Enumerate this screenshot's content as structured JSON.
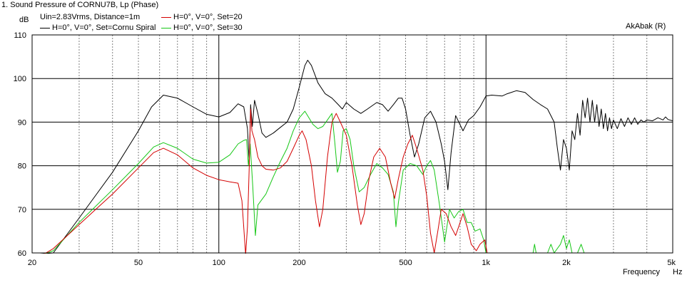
{
  "header": {
    "title": "1. Sound Pressure of CORNU7B, Lp (Phase)",
    "conditions": "Uin=2.83Vrms, Distance=1m",
    "brand": "AkAbak (R)"
  },
  "colors": {
    "black": "#000000",
    "red": "#d40000",
    "green": "#16c716",
    "grid": "#808080"
  },
  "chart_data": {
    "type": "line",
    "title": "1. Sound Pressure of CORNU7B, Lp (Phase)",
    "subtitle": "Uin=2.83Vrms, Distance=1m",
    "xlabel": "Frequency",
    "x_unit": "Hz",
    "ylabel": "dB",
    "x_scale": "log",
    "xlim": [
      20,
      5000
    ],
    "ylim": [
      60,
      110
    ],
    "x_ticks": [
      {
        "value": 20,
        "label": "20"
      },
      {
        "value": 50,
        "label": "50"
      },
      {
        "value": 100,
        "label": "100"
      },
      {
        "value": 200,
        "label": "200"
      },
      {
        "value": 500,
        "label": "500"
      },
      {
        "value": 1000,
        "label": "1k"
      },
      {
        "value": 2000,
        "label": "2k"
      },
      {
        "value": 5000,
        "label": "5k"
      }
    ],
    "y_ticks": [
      {
        "value": 60,
        "label": "60"
      },
      {
        "value": 70,
        "label": "70"
      },
      {
        "value": 80,
        "label": "80"
      },
      {
        "value": 90,
        "label": "90"
      },
      {
        "value": 100,
        "label": "100"
      },
      {
        "value": 110,
        "label": "110"
      }
    ],
    "grid": true,
    "legend_position": "top-left",
    "series": [
      {
        "name": "H=0°, V=0°, Set=Cornu Spiral",
        "color": "#000000",
        "points": [
          [
            20,
            55
          ],
          [
            24,
            60
          ],
          [
            30,
            68
          ],
          [
            40,
            78.5
          ],
          [
            50,
            88
          ],
          [
            56,
            93.5
          ],
          [
            62,
            96.2
          ],
          [
            70,
            95.5
          ],
          [
            80,
            93.5
          ],
          [
            90,
            91.8
          ],
          [
            100,
            91.2
          ],
          [
            110,
            92.2
          ],
          [
            118,
            94.2
          ],
          [
            124,
            93.5
          ],
          [
            128,
            88.5
          ],
          [
            130,
            80.5
          ],
          [
            131.5,
            94
          ],
          [
            133.5,
            89
          ],
          [
            136,
            95
          ],
          [
            140,
            92
          ],
          [
            145,
            87.5
          ],
          [
            150,
            86.5
          ],
          [
            160,
            87.5
          ],
          [
            170,
            88.8
          ],
          [
            180,
            90
          ],
          [
            190,
            93
          ],
          [
            200,
            98
          ],
          [
            210,
            103
          ],
          [
            215,
            104.2
          ],
          [
            222,
            103
          ],
          [
            235,
            99
          ],
          [
            250,
            96.5
          ],
          [
            265,
            95.5
          ],
          [
            280,
            94
          ],
          [
            290,
            93
          ],
          [
            300,
            94.5
          ],
          [
            320,
            93
          ],
          [
            340,
            92
          ],
          [
            360,
            93
          ],
          [
            390,
            94.5
          ],
          [
            410,
            94
          ],
          [
            430,
            92.5
          ],
          [
            450,
            94
          ],
          [
            470,
            95.5
          ],
          [
            485,
            95.5
          ],
          [
            500,
            93
          ],
          [
            520,
            87
          ],
          [
            540,
            82
          ],
          [
            560,
            85
          ],
          [
            590,
            91
          ],
          [
            620,
            92.5
          ],
          [
            650,
            90
          ],
          [
            680,
            85
          ],
          [
            700,
            81
          ],
          [
            720,
            74.5
          ],
          [
            740,
            83
          ],
          [
            770,
            91.5
          ],
          [
            820,
            88
          ],
          [
            860,
            90.5
          ],
          [
            900,
            91.5
          ],
          [
            950,
            93.5
          ],
          [
            1000,
            96
          ],
          [
            1050,
            96.2
          ],
          [
            1150,
            96
          ],
          [
            1200,
            96.5
          ],
          [
            1300,
            97.2
          ],
          [
            1400,
            96.8
          ],
          [
            1500,
            95.2
          ],
          [
            1600,
            94
          ],
          [
            1700,
            93
          ],
          [
            1800,
            90
          ],
          [
            1850,
            84
          ],
          [
            1900,
            79
          ],
          [
            1950,
            86
          ],
          [
            2000,
            84
          ],
          [
            2050,
            79
          ],
          [
            2100,
            88
          ],
          [
            2150,
            86
          ],
          [
            2200,
            92
          ],
          [
            2250,
            87
          ],
          [
            2300,
            95
          ],
          [
            2350,
            91
          ],
          [
            2400,
            95.5
          ],
          [
            2450,
            90
          ],
          [
            2500,
            95
          ],
          [
            2550,
            90
          ],
          [
            2600,
            94
          ],
          [
            2650,
            89
          ],
          [
            2700,
            93
          ],
          [
            2750,
            88.5
          ],
          [
            2800,
            92
          ],
          [
            2850,
            88
          ],
          [
            2900,
            91
          ],
          [
            2950,
            88.5
          ],
          [
            3000,
            90.5
          ],
          [
            3100,
            88.5
          ],
          [
            3200,
            90.8
          ],
          [
            3300,
            89
          ],
          [
            3400,
            91
          ],
          [
            3500,
            89.5
          ],
          [
            3600,
            91
          ],
          [
            3700,
            89.5
          ],
          [
            3800,
            90.5
          ],
          [
            3900,
            90
          ],
          [
            4000,
            90.5
          ],
          [
            4200,
            90.3
          ],
          [
            4400,
            91
          ],
          [
            4600,
            90.5
          ],
          [
            4700,
            91.2
          ],
          [
            4800,
            90.6
          ],
          [
            5000,
            90.3
          ]
        ]
      },
      {
        "name": "H=0°, V=0°, Set=20",
        "color": "#d40000",
        "points": [
          [
            20,
            56
          ],
          [
            22,
            59
          ],
          [
            24,
            61
          ],
          [
            30,
            66.5
          ],
          [
            40,
            73.5
          ],
          [
            50,
            79.5
          ],
          [
            57,
            83
          ],
          [
            62,
            84
          ],
          [
            70,
            82.5
          ],
          [
            80,
            79.5
          ],
          [
            90,
            77.8
          ],
          [
            100,
            76.8
          ],
          [
            110,
            76.3
          ],
          [
            118,
            76
          ],
          [
            122,
            72
          ],
          [
            126,
            59
          ],
          [
            128,
            66
          ],
          [
            130,
            80
          ],
          [
            131.5,
            93
          ],
          [
            133,
            88
          ],
          [
            136,
            86
          ],
          [
            140,
            82
          ],
          [
            145,
            80
          ],
          [
            150,
            79.2
          ],
          [
            160,
            79
          ],
          [
            170,
            79.5
          ],
          [
            180,
            81
          ],
          [
            190,
            84
          ],
          [
            200,
            87
          ],
          [
            205,
            88
          ],
          [
            212,
            86
          ],
          [
            222,
            80
          ],
          [
            230,
            72
          ],
          [
            238,
            66
          ],
          [
            245,
            70
          ],
          [
            255,
            82
          ],
          [
            265,
            90
          ],
          [
            275,
            92
          ],
          [
            285,
            90
          ],
          [
            300,
            87
          ],
          [
            315,
            80
          ],
          [
            330,
            71
          ],
          [
            340,
            66.5
          ],
          [
            350,
            69
          ],
          [
            365,
            77
          ],
          [
            380,
            82
          ],
          [
            400,
            84
          ],
          [
            420,
            82
          ],
          [
            440,
            76
          ],
          [
            455,
            72.5
          ],
          [
            470,
            77
          ],
          [
            490,
            82
          ],
          [
            510,
            85
          ],
          [
            530,
            87
          ],
          [
            550,
            84
          ],
          [
            580,
            79
          ],
          [
            600,
            73
          ],
          [
            620,
            64.5
          ],
          [
            640,
            60
          ],
          [
            660,
            65
          ],
          [
            680,
            70
          ],
          [
            710,
            69
          ],
          [
            740,
            66
          ],
          [
            770,
            64
          ],
          [
            800,
            67
          ],
          [
            820,
            69
          ],
          [
            850,
            66
          ],
          [
            880,
            62
          ],
          [
            920,
            60.5
          ],
          [
            950,
            62
          ],
          [
            990,
            63
          ],
          [
            1010,
            60
          ],
          [
            1200,
            60
          ],
          [
            5000,
            60
          ]
        ]
      },
      {
        "name": "H=0°, V=0°, Set=30",
        "color": "#16c716",
        "points": [
          [
            20,
            56.5
          ],
          [
            22,
            58.8
          ],
          [
            24,
            60.5
          ],
          [
            30,
            67
          ],
          [
            40,
            74.5
          ],
          [
            50,
            80.5
          ],
          [
            57,
            84.3
          ],
          [
            62,
            85.3
          ],
          [
            70,
            84
          ],
          [
            80,
            81.5
          ],
          [
            90,
            80.6
          ],
          [
            100,
            80.8
          ],
          [
            110,
            82.5
          ],
          [
            118,
            85
          ],
          [
            124,
            85.8
          ],
          [
            127,
            86
          ],
          [
            129,
            80
          ],
          [
            131,
            85
          ],
          [
            134,
            75
          ],
          [
            137,
            64
          ],
          [
            140,
            71
          ],
          [
            150,
            73.5
          ],
          [
            160,
            77.5
          ],
          [
            170,
            81
          ],
          [
            180,
            84
          ],
          [
            190,
            88
          ],
          [
            200,
            91
          ],
          [
            210,
            92.5
          ],
          [
            225,
            89.5
          ],
          [
            235,
            88.5
          ],
          [
            245,
            89
          ],
          [
            255,
            90.5
          ],
          [
            265,
            92
          ],
          [
            272,
            85
          ],
          [
            278,
            78.5
          ],
          [
            285,
            81
          ],
          [
            292,
            88
          ],
          [
            300,
            88.5
          ],
          [
            310,
            86
          ],
          [
            320,
            80
          ],
          [
            335,
            74
          ],
          [
            350,
            75
          ],
          [
            370,
            78
          ],
          [
            390,
            80.5
          ],
          [
            410,
            79.5
          ],
          [
            430,
            78
          ],
          [
            450,
            74
          ],
          [
            460,
            66
          ],
          [
            470,
            71.5
          ],
          [
            490,
            79
          ],
          [
            520,
            80.5
          ],
          [
            550,
            80
          ],
          [
            580,
            78
          ],
          [
            600,
            80
          ],
          [
            620,
            81.2
          ],
          [
            640,
            79
          ],
          [
            670,
            71
          ],
          [
            700,
            62.5
          ],
          [
            730,
            70
          ],
          [
            760,
            68
          ],
          [
            790,
            69.5
          ],
          [
            820,
            70
          ],
          [
            850,
            67
          ],
          [
            880,
            67
          ],
          [
            910,
            65
          ],
          [
            950,
            65.5
          ],
          [
            980,
            63
          ],
          [
            1000,
            60
          ],
          [
            1500,
            60
          ],
          [
            1520,
            62
          ],
          [
            1540,
            60
          ],
          [
            1700,
            60
          ],
          [
            1750,
            62
          ],
          [
            1800,
            60
          ],
          [
            1900,
            62
          ],
          [
            1950,
            64
          ],
          [
            2000,
            61
          ],
          [
            2050,
            63
          ],
          [
            2100,
            60
          ],
          [
            2200,
            60
          ],
          [
            2270,
            62
          ],
          [
            2330,
            60
          ],
          [
            2500,
            60
          ],
          [
            5000,
            60
          ]
        ]
      }
    ]
  }
}
